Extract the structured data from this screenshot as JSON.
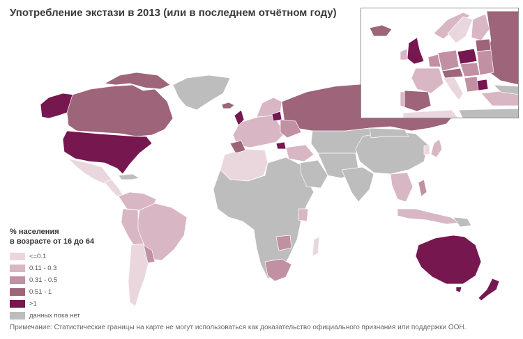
{
  "title": "Употребление экстази в 2013 (или в последнем отчётном году)",
  "legend": {
    "title_line1": "% населения",
    "title_line2": "в возрасте от 16 до 64",
    "items": [
      {
        "label": "<=0.1",
        "color": "#ead7dd"
      },
      {
        "label": "0.11 - 0.3",
        "color": "#d8b6c3"
      },
      {
        "label": "0.31 - 0.5",
        "color": "#c190a3"
      },
      {
        "label": "0.51 - 1",
        "color": "#9e6479"
      },
      {
        "label": ">1",
        "color": "#76174f"
      },
      {
        "label": "данных пока нет",
        "color": "#bdbdbd"
      }
    ]
  },
  "note": "Примечание: Статистические границы на карте не могут использоваться как доказательство официального признания или поддержки ООН.",
  "colors": {
    "no_data": "#bdbdbd",
    "level_1": "#ead7dd",
    "level_2": "#d8b6c3",
    "level_3": "#c190a3",
    "level_4": "#9e6479",
    "level_5": "#76174f",
    "border": "#ffffff"
  }
}
